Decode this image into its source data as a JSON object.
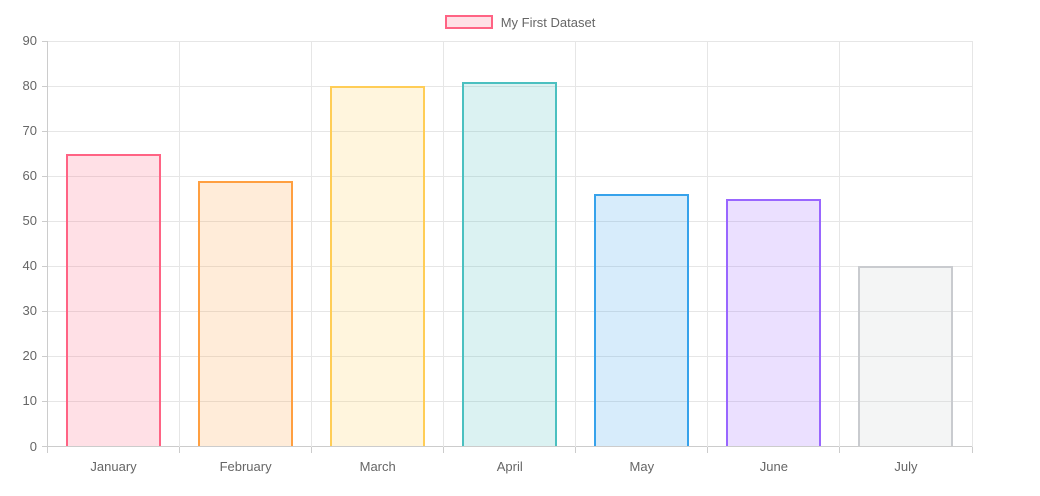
{
  "chart_data": {
    "type": "bar",
    "title": "",
    "xlabel": "",
    "ylabel": "",
    "categories": [
      "January",
      "February",
      "March",
      "April",
      "May",
      "June",
      "July"
    ],
    "series": [
      {
        "name": "My First Dataset",
        "values": [
          65,
          59,
          80,
          81,
          56,
          55,
          40
        ],
        "border_colors": [
          "#ff6384",
          "#ff9f40",
          "#ffcd56",
          "#4bc0c0",
          "#36a2eb",
          "#9966ff",
          "#c9cbcf"
        ],
        "fill_colors": [
          "rgba(255,99,132,0.2)",
          "rgba(255,159,64,0.2)",
          "rgba(255,205,86,0.2)",
          "rgba(75,192,192,0.2)",
          "rgba(54,162,235,0.2)",
          "rgba(153,102,255,0.2)",
          "rgba(201,203,207,0.2)"
        ]
      }
    ],
    "ylim": [
      0,
      90
    ],
    "yticks": [
      0,
      10,
      20,
      30,
      40,
      50,
      60,
      70,
      80,
      90
    ],
    "grid": true,
    "legend_position": "top",
    "colors": {
      "axis_text": "#666666",
      "grid_line": "#e6e6e6",
      "axis_line": "#cccccc"
    }
  }
}
